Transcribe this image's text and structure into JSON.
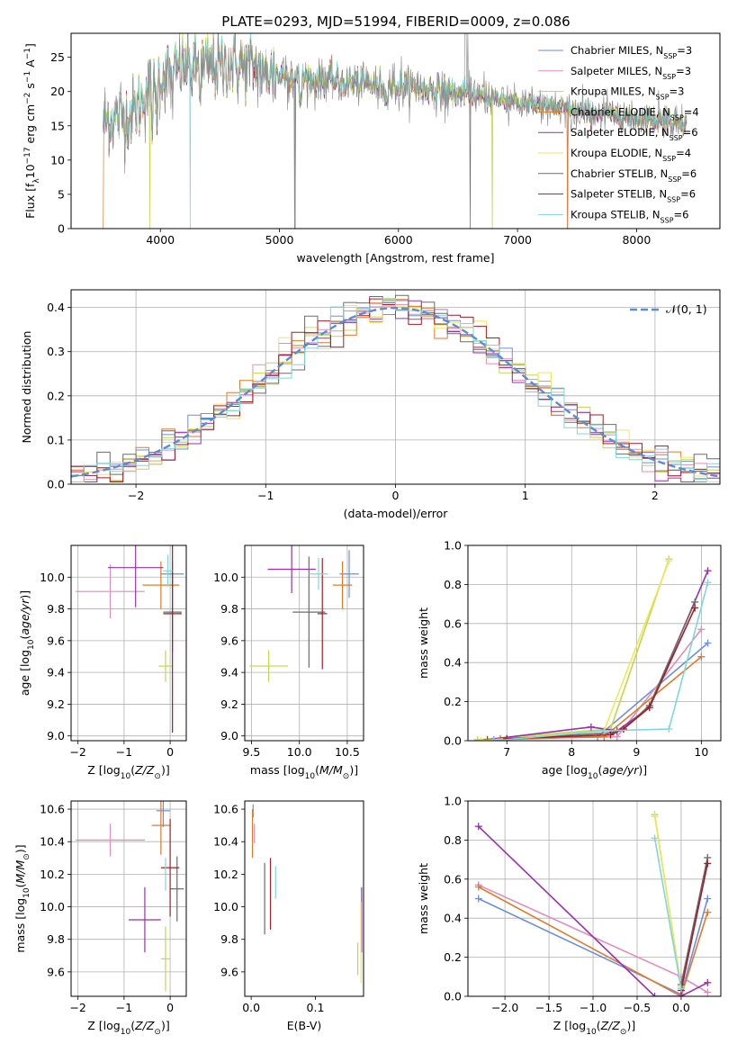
{
  "figure": {
    "title": "PLATE=0293, MJD=51994, FIBERID=0009, z=0.086"
  },
  "colors": [
    "#6b8fde",
    "#e38cb9",
    "#c0d84a",
    "#e07a2a",
    "#9a2fb1",
    "#f2e65c",
    "#6b6b6b",
    "#a31d24",
    "#7fd6dc"
  ],
  "chart_data": [
    {
      "id": "spectrum",
      "type": "line",
      "title": "PLATE=0293, MJD=51994, FIBERID=0009, z=0.086",
      "xlabel": "wavelength [Angstrom, rest frame]",
      "ylabel": "Flux [f_λ10^-17 erg cm^-2 s^-1 A^-1]",
      "xlim": [
        3250,
        8700
      ],
      "ylim": [
        0,
        28.5
      ],
      "xticks": [
        4000,
        5000,
        6000,
        7000,
        8000
      ],
      "yticks": [
        0,
        5,
        10,
        15,
        20,
        25
      ],
      "grid": false,
      "legend_position": "top-right",
      "series_names": [
        "Chabrier MILES, N_SSP=3",
        "Salpeter MILES, N_SSP=3",
        "Kroupa MILES, N_SSP=3",
        "Chabrier ELODIE, N_SSP=4",
        "Salpeter ELODIE, N_SSP=6",
        "Kroupa ELODIE, N_SSP=4",
        "Chabrier STELIB, N_SSP=6",
        "Salpeter STELIB, N_SSP=6",
        "Kroupa STELIB, N_SSP=6"
      ],
      "continuum": {
        "x": [
          3520,
          3600,
          3700,
          3800,
          3900,
          4000,
          4100,
          4200,
          4300,
          4400,
          4500,
          4600,
          4700,
          4800,
          4900,
          5000,
          5200,
          5400,
          5600,
          5800,
          6000,
          6200,
          6400,
          6600,
          6800,
          7000,
          7200,
          7400,
          7600,
          7800,
          8000,
          8200,
          8400
        ],
        "y": [
          15.5,
          16.0,
          16.5,
          17.5,
          20.5,
          22.0,
          23.0,
          23.5,
          23.5,
          23.8,
          24.0,
          24.0,
          23.8,
          23.5,
          23.0,
          22.5,
          22.0,
          21.5,
          21.3,
          21.0,
          20.8,
          20.5,
          20.0,
          19.5,
          19.0,
          18.5,
          18.0,
          17.5,
          17.0,
          16.6,
          16.2,
          15.8,
          15.5
        ]
      }
    },
    {
      "id": "residuals",
      "type": "histogram",
      "xlabel": "(data-model)/error",
      "ylabel": "Normed distribution",
      "xlim": [
        -2.5,
        2.5
      ],
      "ylim": [
        0,
        0.44
      ],
      "xticks": [
        -2,
        -1,
        0,
        1,
        2
      ],
      "yticks": [
        0.0,
        0.1,
        0.2,
        0.3,
        0.4
      ],
      "grid": true,
      "legend": [
        "𝒩(0, 1)"
      ],
      "legend_position": "top-right",
      "bin_width": 0.1
    },
    {
      "id": "age-vs-Z",
      "type": "errorbar",
      "xlabel": "Z [log10(Z/Z⊙)]",
      "ylabel": "age  [log10(age/yr)]",
      "xlim": [
        -2.15,
        0.35
      ],
      "ylim": [
        8.97,
        10.2
      ],
      "xticks": [
        -2,
        -1,
        0
      ],
      "yticks": [
        9.0,
        9.2,
        9.4,
        9.6,
        9.8,
        10.0
      ],
      "grid": true,
      "points": [
        {
          "ci": 0,
          "x": 0.05,
          "xerr": 0.25,
          "y": 10.02,
          "yerr": 0.08
        },
        {
          "ci": 1,
          "x": -1.3,
          "xerr": 0.75,
          "y": 9.91,
          "yerr": 0.17
        },
        {
          "ci": 2,
          "x": -0.1,
          "xerr": 0.15,
          "y": 9.44,
          "yerr": 0.1
        },
        {
          "ci": 3,
          "x": -0.2,
          "xerr": 0.4,
          "y": 9.95,
          "yerr": 0.15
        },
        {
          "ci": 4,
          "x": -0.75,
          "xerr": 0.6,
          "y": 10.06,
          "yerr": 0.25
        },
        {
          "ci": 6,
          "x": 0.05,
          "xerr": 0.2,
          "y": 9.78,
          "yerr": 0.25
        },
        {
          "ci": 7,
          "x": 0.05,
          "xerr": 0.2,
          "y": 9.77,
          "yerr": 0.75
        },
        {
          "ci": 8,
          "x": -0.05,
          "xerr": 0.1,
          "y": 10.04,
          "yerr": 0.1
        }
      ]
    },
    {
      "id": "age-vs-mass",
      "type": "errorbar",
      "xlabel": "mass [log10(M/M⊙)]",
      "xlim": [
        9.43,
        10.67
      ],
      "ylim": [
        8.97,
        10.2
      ],
      "xticks": [
        9.5,
        10.0,
        10.5
      ],
      "yticks": [
        9.0,
        9.2,
        9.4,
        9.6,
        9.8,
        10.0
      ],
      "grid": true,
      "points": [
        {
          "ci": 0,
          "x": 10.52,
          "xerr": 0.1,
          "y": 10.02,
          "yerr": 0.15
        },
        {
          "ci": 2,
          "x": 9.68,
          "xerr": 0.2,
          "y": 9.44,
          "yerr": 0.1
        },
        {
          "ci": 3,
          "x": 10.45,
          "xerr": 0.1,
          "y": 9.95,
          "yerr": 0.15
        },
        {
          "ci": 4,
          "x": 9.92,
          "xerr": 0.25,
          "y": 10.05,
          "yerr": 0.15
        },
        {
          "ci": 6,
          "x": 10.1,
          "xerr": 0.17,
          "y": 9.78,
          "yerr": 0.35
        },
        {
          "ci": 7,
          "x": 10.24,
          "xerr": 0.05,
          "y": 9.77,
          "yerr": 0.35
        },
        {
          "ci": 8,
          "x": 10.2,
          "xerr": 0.1,
          "y": 10.02,
          "yerr": 0.1
        }
      ]
    },
    {
      "id": "massweight-vs-age",
      "type": "line",
      "xlabel": "age  [log10(age/yr)]",
      "ylabel": "mass weight",
      "xlim": [
        6.4,
        10.3
      ],
      "ylim": [
        0,
        1.0
      ],
      "xticks": [
        7,
        8,
        9,
        10
      ],
      "yticks": [
        0.0,
        0.2,
        0.4,
        0.6,
        0.8,
        1.0
      ],
      "grid": true,
      "series": [
        {
          "ci": 0,
          "x": [
            6.8,
            8.4,
            10.1
          ],
          "y": [
            0.005,
            0.02,
            0.5
          ]
        },
        {
          "ci": 1,
          "x": [
            6.9,
            8.7,
            10.0
          ],
          "y": [
            0.01,
            0.02,
            0.57
          ]
        },
        {
          "ci": 2,
          "x": [
            6.55,
            8.6,
            9.5
          ],
          "y": [
            0.005,
            0.06,
            0.93
          ]
        },
        {
          "ci": 3,
          "x": [
            6.9,
            8.5,
            10.0
          ],
          "y": [
            0.01,
            0.02,
            0.43
          ]
        },
        {
          "ci": 4,
          "x": [
            6.7,
            8.3,
            8.7,
            9.2,
            10.1
          ],
          "y": [
            0.005,
            0.07,
            0.05,
            0.17,
            0.87
          ]
        },
        {
          "ci": 5,
          "x": [
            6.6,
            8.5,
            9.5
          ],
          "y": [
            0.0,
            0.05,
            0.92
          ]
        },
        {
          "ci": 6,
          "x": [
            7.0,
            8.6,
            8.8,
            9.2,
            9.9
          ],
          "y": [
            0.01,
            0.04,
            0.06,
            0.18,
            0.71
          ]
        },
        {
          "ci": 7,
          "x": [
            7.0,
            8.6,
            8.8,
            9.2,
            9.9
          ],
          "y": [
            0.01,
            0.03,
            0.06,
            0.17,
            0.68
          ]
        },
        {
          "ci": 8,
          "x": [
            6.8,
            8.5,
            9.5,
            10.1
          ],
          "y": [
            0.0,
            0.05,
            0.06,
            0.81
          ]
        }
      ]
    },
    {
      "id": "mass-vs-Z",
      "type": "errorbar",
      "xlabel": "Z [log10(Z/Z⊙)]",
      "ylabel": "mass [log10(M/M⊙)]",
      "xlim": [
        -2.15,
        0.35
      ],
      "ylim": [
        9.45,
        10.65
      ],
      "xticks": [
        -2,
        -1,
        0
      ],
      "yticks": [
        9.6,
        9.8,
        10.0,
        10.2,
        10.4,
        10.6
      ],
      "grid": true,
      "points": [
        {
          "ci": 0,
          "x": -0.15,
          "xerr": 0.15,
          "y": 10.59,
          "yerr": 0.1
        },
        {
          "ci": 1,
          "x": -1.3,
          "xerr": 0.75,
          "y": 10.41,
          "yerr": 0.1
        },
        {
          "ci": 2,
          "x": -0.1,
          "xerr": 0.1,
          "y": 9.68,
          "yerr": 0.2
        },
        {
          "ci": 3,
          "x": -0.2,
          "xerr": 0.2,
          "y": 10.5,
          "yerr": 0.18
        },
        {
          "ci": 4,
          "x": -0.55,
          "xerr": 0.35,
          "y": 9.92,
          "yerr": 0.2
        },
        {
          "ci": 6,
          "x": 0.15,
          "xerr": 0.15,
          "y": 10.11,
          "yerr": 0.2
        },
        {
          "ci": 7,
          "x": 0.0,
          "xerr": 0.2,
          "y": 10.24,
          "yerr": 0.3
        },
        {
          "ci": 8,
          "x": -0.1,
          "xerr": 0.05,
          "y": 10.2,
          "yerr": 0.1
        }
      ]
    },
    {
      "id": "mass-vs-EBV",
      "type": "errorbar",
      "xlabel": "E(B-V)",
      "xlim": [
        -0.01,
        0.175
      ],
      "ylim": [
        9.45,
        10.65
      ],
      "xticks": [
        0.0,
        0.1
      ],
      "yticks": [
        9.6,
        9.8,
        10.0,
        10.2,
        10.4,
        10.6
      ],
      "grid": false,
      "points": [
        {
          "ci": 0,
          "x": 0.003,
          "y": 10.59,
          "yerr": 0.04
        },
        {
          "ci": 1,
          "x": 0.005,
          "y": 10.45,
          "yerr": 0.06
        },
        {
          "ci": 2,
          "x": 0.166,
          "y": 9.68,
          "yerr": 0.1
        },
        {
          "ci": 3,
          "x": 0.002,
          "y": 10.45,
          "yerr": 0.15
        },
        {
          "ci": 4,
          "x": 0.172,
          "y": 9.92,
          "yerr": 0.2
        },
        {
          "ci": 6,
          "x": 0.021,
          "y": 10.05,
          "yerr": 0.22
        },
        {
          "ci": 7,
          "x": 0.03,
          "y": 10.08,
          "yerr": 0.22
        },
        {
          "ci": 8,
          "x": 0.038,
          "y": 10.15,
          "yerr": 0.1
        },
        {
          "ci": 5,
          "x": 0.171,
          "y": 9.78,
          "yerr": 0.25
        }
      ]
    },
    {
      "id": "massweight-vs-Z",
      "type": "line",
      "xlabel": "Z [log10(Z/Z⊙)]",
      "ylabel": "mass weight",
      "xlim": [
        -2.42,
        0.45
      ],
      "ylim": [
        0,
        1.0
      ],
      "xticks": [
        -2.0,
        -1.5,
        -1.0,
        -0.5,
        0.0
      ],
      "yticks": [
        0.0,
        0.2,
        0.4,
        0.6,
        0.8,
        1.0
      ],
      "grid": true,
      "series": [
        {
          "ci": 0,
          "x": [
            -2.3,
            0.0,
            0.3
          ],
          "y": [
            0.5,
            0.01,
            0.5
          ]
        },
        {
          "ci": 1,
          "x": [
            -2.3,
            0.0,
            0.3
          ],
          "y": [
            0.57,
            0.1,
            0.02
          ]
        },
        {
          "ci": 2,
          "x": [
            -0.3,
            0.0
          ],
          "y": [
            0.93,
            0.05
          ]
        },
        {
          "ci": 3,
          "x": [
            -2.3,
            0.0,
            0.3
          ],
          "y": [
            0.56,
            0.0,
            0.43
          ]
        },
        {
          "ci": 4,
          "x": [
            -2.3,
            -0.3,
            0.0,
            0.3
          ],
          "y": [
            0.87,
            0.0,
            0.0,
            0.07
          ]
        },
        {
          "ci": 5,
          "x": [
            -0.3,
            0.0
          ],
          "y": [
            0.92,
            0.05
          ]
        },
        {
          "ci": 6,
          "x": [
            0.0,
            0.3
          ],
          "y": [
            0.06,
            0.71
          ]
        },
        {
          "ci": 7,
          "x": [
            0.0,
            0.3
          ],
          "y": [
            0.03,
            0.68
          ]
        },
        {
          "ci": 8,
          "x": [
            -0.3,
            0.0
          ],
          "y": [
            0.81,
            0.04
          ]
        }
      ]
    }
  ]
}
